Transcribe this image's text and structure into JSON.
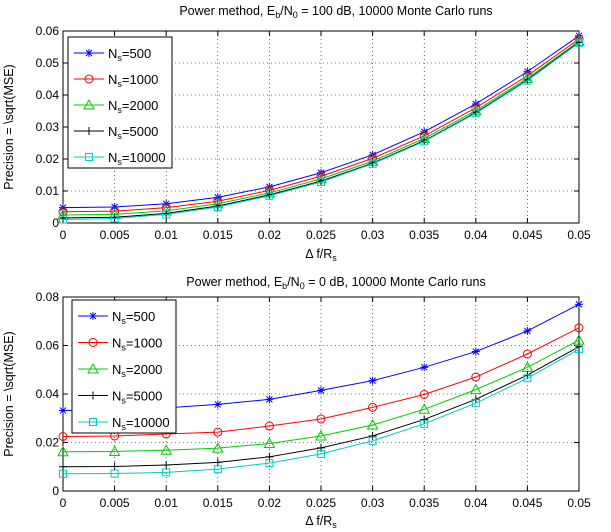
{
  "chart_data": [
    {
      "type": "line",
      "title": {
        "pre": "Power method, E",
        "sub1": "b",
        "mid": "/N",
        "sub2": "0",
        "post": " = 100 dB, 10000 Monte Carlo runs"
      },
      "xlabel": {
        "pre": "Δ f/R",
        "sub": "s"
      },
      "ylabel": "Precision = \\sqrt(MSE)",
      "x": [
        0,
        0.005,
        0.01,
        0.015,
        0.02,
        0.025,
        0.03,
        0.035,
        0.04,
        0.045,
        0.05
      ],
      "x_ticks": [
        "0",
        "0.005",
        "0.01",
        "0.015",
        "0.02",
        "0.025",
        "0.03",
        "0.035",
        "0.04",
        "0.045",
        "0.05"
      ],
      "xlim": [
        0,
        0.05
      ],
      "ylim": [
        0,
        0.06
      ],
      "y_ticks": [
        0,
        0.01,
        0.02,
        0.03,
        0.04,
        0.05,
        0.06
      ],
      "y_tick_labels": [
        "0",
        "0.01",
        "0.02",
        "0.03",
        "0.04",
        "0.05",
        "0.06"
      ],
      "grid": true,
      "legend_position": "top-left",
      "series": [
        {
          "name": {
            "pre": "N",
            "sub": "s",
            "post": "=500"
          },
          "color": "#0000ff",
          "marker": "star",
          "values": [
            0.0048,
            0.005,
            0.006,
            0.008,
            0.0113,
            0.0157,
            0.0213,
            0.0285,
            0.0372,
            0.0473,
            0.0585
          ]
        },
        {
          "name": {
            "pre": "N",
            "sub": "s",
            "post": "=1000"
          },
          "color": "#ff0000",
          "marker": "circle",
          "values": [
            0.0035,
            0.0037,
            0.0048,
            0.0068,
            0.0102,
            0.0146,
            0.0202,
            0.0272,
            0.036,
            0.046,
            0.0575
          ]
        },
        {
          "name": {
            "pre": "N",
            "sub": "s",
            "post": "=2000"
          },
          "color": "#00cc00",
          "marker": "triangle",
          "values": [
            0.0025,
            0.0027,
            0.0038,
            0.006,
            0.0094,
            0.0138,
            0.0193,
            0.0264,
            0.0351,
            0.0452,
            0.0568
          ]
        },
        {
          "name": {
            "pre": "N",
            "sub": "s",
            "post": "=5000"
          },
          "color": "#000000",
          "marker": "plus",
          "values": [
            0.0016,
            0.0018,
            0.003,
            0.0053,
            0.0088,
            0.0131,
            0.0187,
            0.0257,
            0.0345,
            0.0447,
            0.0565
          ]
        },
        {
          "name": {
            "pre": "N",
            "sub": "s",
            "post": "=10000"
          },
          "color": "#00cccc",
          "marker": "square",
          "values": [
            0.0011,
            0.0014,
            0.0027,
            0.005,
            0.0085,
            0.0128,
            0.0185,
            0.0255,
            0.0343,
            0.0445,
            0.0563
          ]
        }
      ]
    },
    {
      "type": "line",
      "title": {
        "pre": "Power method, E",
        "sub1": "b",
        "mid": "/N",
        "sub2": "0",
        "post": " = 0 dB, 10000 Monte Carlo runs"
      },
      "xlabel": {
        "pre": "Δ f/R",
        "sub": "s"
      },
      "ylabel": "Precision = \\sqrt(MSE)",
      "x": [
        0,
        0.005,
        0.01,
        0.015,
        0.02,
        0.025,
        0.03,
        0.035,
        0.04,
        0.045,
        0.05
      ],
      "x_ticks": [
        "0",
        "0.005",
        "0.01",
        "0.015",
        "0.02",
        "0.025",
        "0.03",
        "0.035",
        "0.04",
        "0.045",
        "0.05"
      ],
      "xlim": [
        0,
        0.05
      ],
      "ylim": [
        0,
        0.08
      ],
      "y_ticks": [
        0,
        0.02,
        0.04,
        0.06,
        0.08
      ],
      "y_tick_labels": [
        "0",
        "0.02",
        "0.04",
        "0.06",
        "0.08"
      ],
      "grid": true,
      "legend_position": "top-left",
      "series": [
        {
          "name": {
            "pre": "N",
            "sub": "s",
            "post": "=500"
          },
          "color": "#0000ff",
          "marker": "star",
          "values": [
            0.0332,
            0.0335,
            0.0343,
            0.0357,
            0.0378,
            0.0415,
            0.0455,
            0.051,
            0.0575,
            0.066,
            0.077
          ]
        },
        {
          "name": {
            "pre": "N",
            "sub": "s",
            "post": "=1000"
          },
          "color": "#ff0000",
          "marker": "circle",
          "values": [
            0.0225,
            0.0227,
            0.0235,
            0.0243,
            0.0268,
            0.0297,
            0.0345,
            0.0398,
            0.047,
            0.0565,
            0.0673
          ]
        },
        {
          "name": {
            "pre": "N",
            "sub": "s",
            "post": "=2000"
          },
          "color": "#00cc00",
          "marker": "triangle",
          "values": [
            0.0162,
            0.0163,
            0.0168,
            0.0177,
            0.0196,
            0.0227,
            0.0272,
            0.0337,
            0.0418,
            0.051,
            0.0622
          ]
        },
        {
          "name": {
            "pre": "N",
            "sub": "s",
            "post": "=5000"
          },
          "color": "#000000",
          "marker": "plus",
          "values": [
            0.01,
            0.0101,
            0.0107,
            0.0118,
            0.0141,
            0.0178,
            0.0227,
            0.0295,
            0.0378,
            0.0478,
            0.0595
          ]
        },
        {
          "name": {
            "pre": "N",
            "sub": "s",
            "post": "=10000"
          },
          "color": "#00cccc",
          "marker": "square",
          "values": [
            0.0071,
            0.0072,
            0.0077,
            0.009,
            0.0115,
            0.0153,
            0.0207,
            0.0277,
            0.0362,
            0.0465,
            0.0585
          ]
        }
      ]
    }
  ]
}
